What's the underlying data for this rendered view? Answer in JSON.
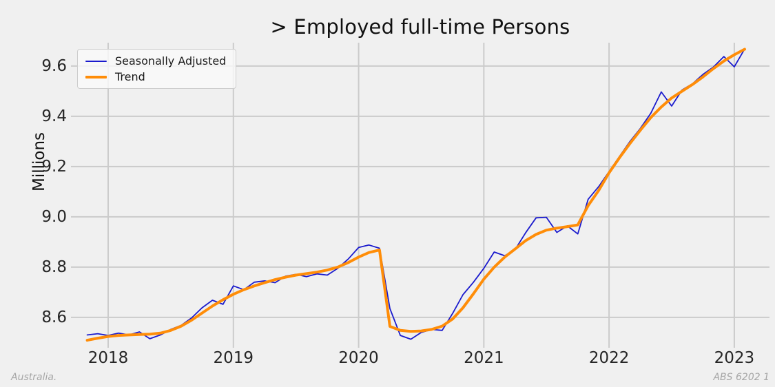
{
  "chart_data": {
    "type": "line",
    "title": "> Employed full-time Persons",
    "ylabel": "Millions",
    "footnote_left": "Australia.",
    "footnote_right": "ABS 6202 1",
    "background_color": "#f0f0f0",
    "grid_color": "#cbcbcb",
    "grid_on": true,
    "legend_position": "upper left",
    "xlim": [
      2017.703,
      2023.281
    ],
    "ylim": [
      8.479,
      9.693
    ],
    "x_ticks": [
      {
        "value": 2018,
        "label": "2018"
      },
      {
        "value": 2019,
        "label": "2019"
      },
      {
        "value": 2020,
        "label": "2020"
      },
      {
        "value": 2021,
        "label": "2021"
      },
      {
        "value": 2022,
        "label": "2022"
      },
      {
        "value": 2023,
        "label": "2023"
      }
    ],
    "y_ticks": [
      {
        "value": 8.6,
        "label": "8.6"
      },
      {
        "value": 8.8,
        "label": "8.8"
      },
      {
        "value": 9.0,
        "label": "9.0"
      },
      {
        "value": 9.2,
        "label": "9.2"
      },
      {
        "value": 9.4,
        "label": "9.4"
      },
      {
        "value": 9.6,
        "label": "9.6"
      }
    ],
    "x": [
      2017.833,
      2017.917,
      2018.0,
      2018.083,
      2018.167,
      2018.25,
      2018.333,
      2018.417,
      2018.5,
      2018.583,
      2018.667,
      2018.75,
      2018.833,
      2018.917,
      2019.0,
      2019.083,
      2019.167,
      2019.25,
      2019.333,
      2019.417,
      2019.5,
      2019.583,
      2019.667,
      2019.75,
      2019.833,
      2019.917,
      2020.0,
      2020.083,
      2020.167,
      2020.25,
      2020.333,
      2020.417,
      2020.5,
      2020.583,
      2020.667,
      2020.75,
      2020.833,
      2020.917,
      2021.0,
      2021.083,
      2021.167,
      2021.25,
      2021.333,
      2021.417,
      2021.5,
      2021.583,
      2021.667,
      2021.75,
      2021.833,
      2021.917,
      2022.0,
      2022.083,
      2022.167,
      2022.25,
      2022.333,
      2022.417,
      2022.5,
      2022.583,
      2022.667,
      2022.75,
      2022.833,
      2022.917,
      2023.0,
      2023.083
    ],
    "series": [
      {
        "name": "Seasonally Adjusted",
        "color": "#1a1acd",
        "line_width": 1.8,
        "values": [
          8.53,
          8.535,
          8.528,
          8.537,
          8.53,
          8.542,
          8.515,
          8.53,
          8.552,
          8.568,
          8.598,
          8.638,
          8.668,
          8.652,
          8.725,
          8.71,
          8.74,
          8.745,
          8.738,
          8.764,
          8.771,
          8.762,
          8.773,
          8.768,
          8.795,
          8.832,
          8.878,
          8.888,
          8.875,
          8.635,
          8.528,
          8.513,
          8.54,
          8.552,
          8.548,
          8.615,
          8.69,
          8.74,
          8.795,
          8.86,
          8.845,
          8.87,
          8.936,
          8.996,
          8.998,
          8.938,
          8.964,
          8.932,
          9.07,
          9.12,
          9.18,
          9.24,
          9.3,
          9.352,
          9.412,
          9.497,
          9.441,
          9.505,
          9.53,
          9.567,
          9.596,
          9.638,
          9.597,
          9.668
        ]
      },
      {
        "name": "Trend",
        "color": "#ff8d08",
        "line_width": 4,
        "values": [
          8.509,
          8.517,
          8.524,
          8.528,
          8.53,
          8.532,
          8.533,
          8.537,
          8.548,
          8.565,
          8.589,
          8.617,
          8.645,
          8.67,
          8.692,
          8.71,
          8.725,
          8.738,
          8.75,
          8.76,
          8.768,
          8.774,
          8.78,
          8.788,
          8.8,
          8.818,
          8.84,
          8.858,
          8.868,
          8.564,
          8.548,
          8.544,
          8.546,
          8.552,
          8.565,
          8.593,
          8.638,
          8.694,
          8.752,
          8.8,
          8.84,
          8.872,
          8.905,
          8.93,
          8.947,
          8.955,
          8.961,
          8.968,
          9.045,
          9.105,
          9.175,
          9.235,
          9.292,
          9.345,
          9.395,
          9.437,
          9.473,
          9.5,
          9.527,
          9.557,
          9.59,
          9.62,
          9.645,
          9.667
        ]
      }
    ]
  }
}
